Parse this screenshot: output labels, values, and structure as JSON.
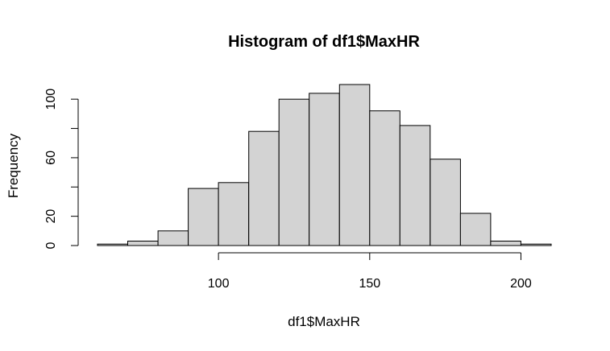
{
  "chart_data": {
    "type": "bar",
    "title": "Histogram of df1$MaxHR",
    "xlabel": "df1$MaxHR",
    "ylabel": "Frequency",
    "bin_edges": [
      60,
      70,
      80,
      90,
      100,
      110,
      120,
      130,
      140,
      150,
      160,
      170,
      180,
      190,
      200,
      210
    ],
    "values": [
      1,
      3,
      10,
      39,
      43,
      78,
      100,
      104,
      110,
      92,
      82,
      59,
      22,
      3,
      1
    ],
    "xlim": [
      60,
      210
    ],
    "ylim": [
      0,
      110
    ],
    "x_ticks": [
      100,
      150,
      200
    ],
    "x_tick_labels": [
      "100",
      "150",
      "200"
    ],
    "y_ticks": [
      0,
      20,
      40,
      60,
      80,
      100
    ],
    "y_tick_labels": [
      "0",
      "20",
      "",
      "60",
      "",
      "100"
    ],
    "bar_color": "#d3d3d3",
    "grid": false,
    "legend": "none"
  }
}
